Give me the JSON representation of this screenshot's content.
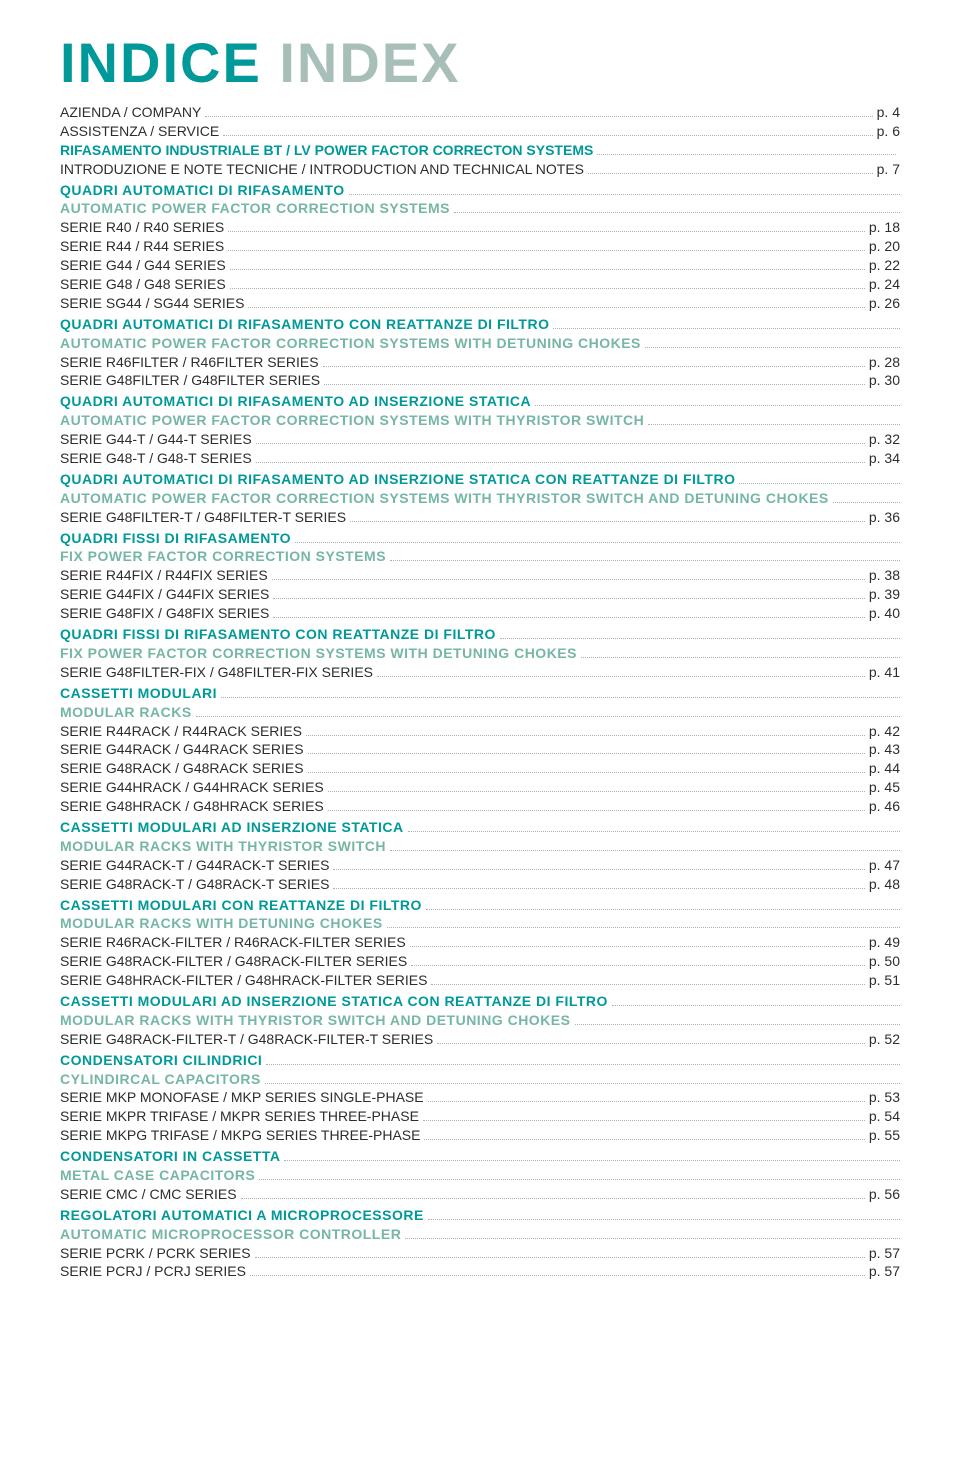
{
  "title": {
    "indice": "INDICE",
    "index": "INDEX"
  },
  "top": [
    {
      "label": "AZIENDA / COMPANY",
      "page": "p. 4",
      "heading": false
    },
    {
      "label": "ASSISTENZA / SERVICE",
      "page": "p. 6",
      "heading": false
    },
    {
      "label": "RIFASAMENTO INDUSTRIALE BT / LV POWER FACTOR CORRECTON SYSTEMS",
      "page": "",
      "heading": true
    },
    {
      "label": "INTRODUZIONE E NOTE TECNICHE / INTRODUCTION AND TECHNICAL NOTES",
      "page": "p. 7",
      "heading": false
    }
  ],
  "sections": [
    {
      "it": "QUADRI AUTOMATICI DI RIFASAMENTO",
      "en": "AUTOMATIC POWER FACTOR CORRECTION SYSTEMS",
      "items": [
        {
          "label": "SERIE R40 / R40 SERIES",
          "page": "p. 18"
        },
        {
          "label": "SERIE R44 / R44 SERIES",
          "page": "p. 20"
        },
        {
          "label": "SERIE G44 / G44 SERIES",
          "page": "p. 22"
        },
        {
          "label": "SERIE G48 / G48 SERIES",
          "page": "p. 24"
        },
        {
          "label": "SERIE SG44 / SG44 SERIES",
          "page": "p. 26"
        }
      ]
    },
    {
      "it": "QUADRI AUTOMATICI DI RIFASAMENTO CON REATTANZE DI FILTRO",
      "en": "AUTOMATIC POWER FACTOR CORRECTION SYSTEMS WITH DETUNING CHOKES",
      "items": [
        {
          "label": "SERIE R46FILTER / R46FILTER SERIES",
          "page": "p. 28"
        },
        {
          "label": "SERIE G48FILTER / G48FILTER SERIES",
          "page": "p. 30"
        }
      ]
    },
    {
      "it": "QUADRI AUTOMATICI DI RIFASAMENTO AD INSERZIONE STATICA",
      "en": "AUTOMATIC POWER FACTOR CORRECTION SYSTEMS WITH THYRISTOR SWITCH",
      "items": [
        {
          "label": "SERIE G44-T / G44-T SERIES",
          "page": "p. 32"
        },
        {
          "label": "SERIE G48-T / G48-T SERIES",
          "page": "p. 34"
        }
      ]
    },
    {
      "it": "QUADRI AUTOMATICI DI RIFASAMENTO AD INSERZIONE STATICA CON REATTANZE DI FILTRO",
      "en": "AUTOMATIC POWER FACTOR CORRECTION SYSTEMS WITH THYRISTOR SWITCH AND DETUNING CHOKES",
      "items": [
        {
          "label": "SERIE G48FILTER-T / G48FILTER-T SERIES",
          "page": "p. 36"
        }
      ]
    },
    {
      "it": "QUADRI FISSI DI RIFASAMENTO",
      "en": "FIX POWER FACTOR CORRECTION SYSTEMS",
      "items": [
        {
          "label": "SERIE R44FIX / R44FIX SERIES",
          "page": "p. 38"
        },
        {
          "label": "SERIE G44FIX / G44FIX SERIES",
          "page": "p. 39"
        },
        {
          "label": "SERIE G48FIX / G48FIX SERIES",
          "page": "p. 40"
        }
      ]
    },
    {
      "it": "QUADRI FISSI DI RIFASAMENTO  CON REATTANZE DI FILTRO",
      "en": "FIX POWER FACTOR CORRECTION SYSTEMS WITH DETUNING CHOKES",
      "items": [
        {
          "label": "SERIE G48FILTER-FIX / G48FILTER-FIX SERIES",
          "page": "p. 41"
        }
      ]
    },
    {
      "it": "CASSETTI MODULARI",
      "en": "MODULAR RACKS",
      "items": [
        {
          "label": "SERIE R44RACK / R44RACK SERIES",
          "page": "p. 42"
        },
        {
          "label": "SERIE G44RACK / G44RACK SERIES",
          "page": "p. 43"
        },
        {
          "label": "SERIE G48RACK / G48RACK SERIES",
          "page": "p. 44"
        },
        {
          "label": "SERIE G44HRACK / G44HRACK SERIES",
          "page": "p. 45"
        },
        {
          "label": "SERIE G48HRACK / G48HRACK SERIES",
          "page": "p. 46"
        }
      ]
    },
    {
      "it": "CASSETTI MODULARI AD INSERZIONE STATICA",
      "en": "MODULAR RACKS WITH THYRISTOR SWITCH",
      "items": [
        {
          "label": "SERIE G44RACK-T / G44RACK-T SERIES",
          "page": "p. 47"
        },
        {
          "label": "SERIE G48RACK-T / G48RACK-T SERIES",
          "page": "p. 48"
        }
      ]
    },
    {
      "it": "CASSETTI MODULARI CON REATTANZE DI FILTRO",
      "en": "MODULAR RACKS WITH DETUNING CHOKES",
      "items": [
        {
          "label": "SERIE R46RACK-FILTER / R46RACK-FILTER SERIES",
          "page": "p. 49"
        },
        {
          "label": "SERIE G48RACK-FILTER / G48RACK-FILTER SERIES",
          "page": "p. 50"
        },
        {
          "label": "SERIE G48HRACK-FILTER / G48HRACK-FILTER SERIES",
          "page": "p. 51"
        }
      ]
    },
    {
      "it": "CASSETTI MODULARI AD INSERZIONE STATICA CON REATTANZE DI FILTRO",
      "en": "MODULAR RACKS WITH THYRISTOR SWITCH AND DETUNING CHOKES",
      "items": [
        {
          "label": "SERIE G48RACK-FILTER-T / G48RACK-FILTER-T SERIES",
          "page": "p. 52"
        }
      ]
    },
    {
      "it": "CONDENSATORI CILINDRICI",
      "en": "CYLINDIRCAL CAPACITORS",
      "items": [
        {
          "label": "SERIE MKP MONOFASE / MKP SERIES SINGLE-PHASE",
          "page": "p. 53"
        },
        {
          "label": "SERIE MKPR TRIFASE / MKPR SERIES THREE-PHASE",
          "page": "p. 54"
        },
        {
          "label": "SERIE MKPG TRIFASE / MKPG SERIES THREE-PHASE",
          "page": "p. 55"
        }
      ]
    },
    {
      "it": "CONDENSATORI IN CASSETTA",
      "en": "METAL CASE CAPACITORS",
      "items": [
        {
          "label": "SERIE CMC / CMC SERIES",
          "page": "p. 56"
        }
      ]
    },
    {
      "it": "REGOLATORI AUTOMATICI A MICROPROCESSORE",
      "en": "AUTOMATIC MICROPROCESSOR CONTROLLER",
      "items": [
        {
          "label": "SERIE PCRK / PCRK SERIES",
          "page": "p. 57"
        },
        {
          "label": "SERIE PCRJ / PCRJ SERIES",
          "page": "p. 57"
        }
      ]
    }
  ]
}
